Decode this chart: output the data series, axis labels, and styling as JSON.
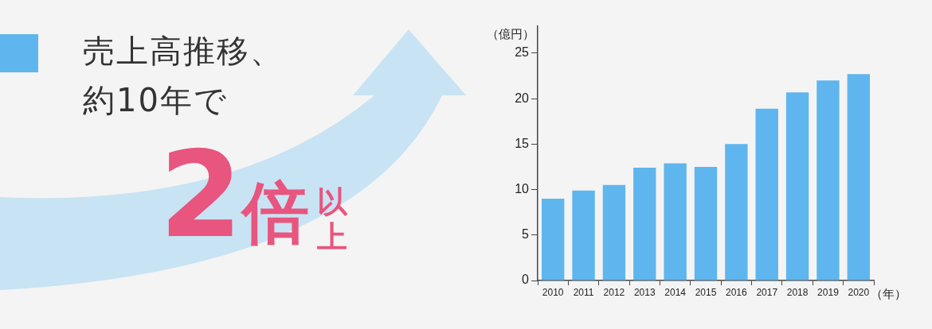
{
  "chart_data": {
    "type": "bar",
    "title": "売上高推移、",
    "subtitle": "約10年で",
    "annotations": [
      "2倍",
      "以上"
    ],
    "ylabel": "（億円）",
    "xlabel": "（年）",
    "categories": [
      "2010",
      "2011",
      "2012",
      "2013",
      "2014",
      "2015",
      "2016",
      "2017",
      "2018",
      "2019",
      "2020"
    ],
    "values": [
      9.0,
      9.9,
      10.5,
      12.4,
      12.9,
      12.5,
      15.0,
      18.9,
      20.7,
      22.0,
      22.7
    ],
    "color": "#5fb6ee",
    "ylim": [
      0,
      28
    ],
    "yticks": [
      0,
      5,
      10,
      15,
      20,
      25
    ]
  }
}
